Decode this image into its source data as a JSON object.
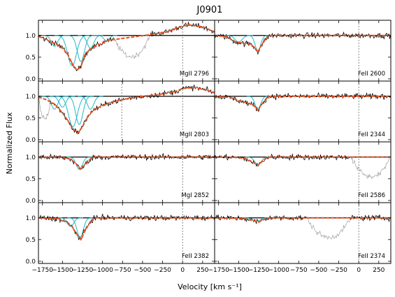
{
  "chart_data": {
    "type": "line",
    "title": "J0901",
    "xlabel": "Velocity [km s⁻¹]",
    "ylabel": "Normalized Flux",
    "xlim": [
      -1800,
      400
    ],
    "ylim": [
      -0.05,
      1.35
    ],
    "x_ticks": [
      -1750,
      -1500,
      -1250,
      -1000,
      -750,
      -500,
      -250,
      0,
      250
    ],
    "y_ticks": [
      0.0,
      0.5,
      1.0
    ],
    "grid": false,
    "panels": [
      {
        "label": "MgII 2796",
        "col": 0,
        "row": 0,
        "model_points": [
          [
            -1800,
            0.98
          ],
          [
            -1700,
            0.9
          ],
          [
            -1600,
            0.82
          ],
          [
            -1500,
            0.72
          ],
          [
            -1430,
            0.55
          ],
          [
            -1380,
            0.35
          ],
          [
            -1320,
            0.2
          ],
          [
            -1270,
            0.28
          ],
          [
            -1220,
            0.55
          ],
          [
            -1150,
            0.7
          ],
          [
            -1050,
            0.78
          ],
          [
            -950,
            0.88
          ],
          [
            -800,
            0.92
          ],
          [
            -600,
            0.97
          ],
          [
            -400,
            1.02
          ],
          [
            -200,
            1.08
          ],
          [
            0,
            1.22
          ],
          [
            100,
            1.24
          ],
          [
            250,
            1.2
          ],
          [
            400,
            1.08
          ]
        ],
        "components": [
          {
            "center": -1380,
            "depth": 0.7,
            "width": 55
          },
          {
            "center": -1270,
            "depth": 0.6,
            "width": 45
          },
          {
            "center": -1600,
            "depth": 0.25,
            "width": 40
          },
          {
            "center": -1150,
            "depth": 0.3,
            "width": 40
          },
          {
            "center": -950,
            "depth": 0.12,
            "width": 35
          }
        ],
        "blend_range": [
          -850,
          -400
        ]
      },
      {
        "label": "FeII 2600",
        "col": 1,
        "row": 0,
        "model_points": [
          [
            -1800,
            1.0
          ],
          [
            -1650,
            0.97
          ],
          [
            -1550,
            0.86
          ],
          [
            -1450,
            0.82
          ],
          [
            -1350,
            0.8
          ],
          [
            -1300,
            0.72
          ],
          [
            -1260,
            0.62
          ],
          [
            -1220,
            0.76
          ],
          [
            -1150,
            0.95
          ],
          [
            -1100,
            1.0
          ],
          [
            400,
            1.0
          ]
        ],
        "components": [
          {
            "center": -1500,
            "depth": 0.15,
            "width": 45
          },
          {
            "center": -1260,
            "depth": 0.35,
            "width": 35
          }
        ],
        "blend_range": null
      },
      {
        "label": "MgII 2803",
        "col": 0,
        "row": 1,
        "model_points": [
          [
            -1800,
            0.98
          ],
          [
            -1700,
            0.92
          ],
          [
            -1600,
            0.82
          ],
          [
            -1500,
            0.62
          ],
          [
            -1420,
            0.4
          ],
          [
            -1370,
            0.25
          ],
          [
            -1310,
            0.15
          ],
          [
            -1250,
            0.3
          ],
          [
            -1180,
            0.55
          ],
          [
            -1100,
            0.7
          ],
          [
            -1000,
            0.78
          ],
          [
            -900,
            0.86
          ],
          [
            -700,
            0.94
          ],
          [
            -500,
            1.0
          ],
          [
            -300,
            1.04
          ],
          [
            -100,
            1.1
          ],
          [
            0,
            1.18
          ],
          [
            150,
            1.2
          ],
          [
            300,
            1.14
          ],
          [
            400,
            1.08
          ]
        ],
        "components": [
          {
            "center": -1370,
            "depth": 0.7,
            "width": 55
          },
          {
            "center": -1290,
            "depth": 0.65,
            "width": 45
          },
          {
            "center": -1600,
            "depth": 0.3,
            "width": 40
          },
          {
            "center": -1500,
            "depth": 0.25,
            "width": 40
          },
          {
            "center": -1150,
            "depth": 0.3,
            "width": 40
          }
        ],
        "blend_range": [
          -1800,
          -1650
        ]
      },
      {
        "label": "FeII 2344",
        "col": 1,
        "row": 1,
        "model_points": [
          [
            -1800,
            1.0
          ],
          [
            -1600,
            0.97
          ],
          [
            -1500,
            0.9
          ],
          [
            -1400,
            0.85
          ],
          [
            -1320,
            0.8
          ],
          [
            -1260,
            0.68
          ],
          [
            -1220,
            0.8
          ],
          [
            -1150,
            0.96
          ],
          [
            -1100,
            1.0
          ],
          [
            400,
            1.0
          ]
        ],
        "components": [
          {
            "center": -1260,
            "depth": 0.3,
            "width": 35
          }
        ],
        "blend_range": null
      },
      {
        "label": "MgI 2852",
        "col": 0,
        "row": 2,
        "model_points": [
          [
            -1800,
            1.0
          ],
          [
            -1500,
            0.99
          ],
          [
            -1400,
            0.95
          ],
          [
            -1330,
            0.85
          ],
          [
            -1280,
            0.72
          ],
          [
            -1230,
            0.8
          ],
          [
            -1150,
            0.96
          ],
          [
            -1100,
            1.0
          ],
          [
            400,
            1.0
          ]
        ],
        "components": [
          {
            "center": -1290,
            "depth": 0.28,
            "width": 40
          }
        ],
        "blend_range": null
      },
      {
        "label": "FeII 2586",
        "col": 1,
        "row": 2,
        "model_points": [
          [
            -1800,
            1.0
          ],
          [
            -1500,
            0.99
          ],
          [
            -1400,
            0.95
          ],
          [
            -1300,
            0.86
          ],
          [
            -1260,
            0.8
          ],
          [
            -1220,
            0.88
          ],
          [
            -1150,
            0.98
          ],
          [
            -1100,
            1.0
          ],
          [
            400,
            1.0
          ]
        ],
        "components": [
          {
            "center": -1260,
            "depth": 0.18,
            "width": 40
          }
        ],
        "blend_range": [
          -100,
          400
        ]
      },
      {
        "label": "FeII 2382",
        "col": 0,
        "row": 3,
        "model_points": [
          [
            -1800,
            1.0
          ],
          [
            -1550,
            0.98
          ],
          [
            -1450,
            0.9
          ],
          [
            -1380,
            0.8
          ],
          [
            -1320,
            0.62
          ],
          [
            -1270,
            0.5
          ],
          [
            -1220,
            0.7
          ],
          [
            -1150,
            0.92
          ],
          [
            -1100,
            1.0
          ],
          [
            400,
            1.0
          ]
        ],
        "components": [
          {
            "center": -1400,
            "depth": 0.2,
            "width": 40
          },
          {
            "center": -1280,
            "depth": 0.45,
            "width": 40
          }
        ],
        "blend_range": null
      },
      {
        "label": "FeII 2374",
        "col": 1,
        "row": 3,
        "model_points": [
          [
            -1800,
            1.0
          ],
          [
            -1500,
            0.99
          ],
          [
            -1400,
            0.97
          ],
          [
            -1300,
            0.93
          ],
          [
            -1250,
            0.9
          ],
          [
            -1200,
            0.95
          ],
          [
            -1150,
            0.99
          ],
          [
            -1100,
            1.0
          ],
          [
            400,
            1.0
          ]
        ],
        "components": [
          {
            "center": -1280,
            "depth": 0.08,
            "width": 45
          }
        ],
        "blend_range": [
          -650,
          -100
        ]
      }
    ]
  },
  "style": {
    "data_color": "#000000",
    "blend_color": "#aaaaaa",
    "model_color": "#e8501c",
    "component_color": "#22b8c8",
    "continuum_color": "#000000",
    "guide_color": "#555555"
  }
}
